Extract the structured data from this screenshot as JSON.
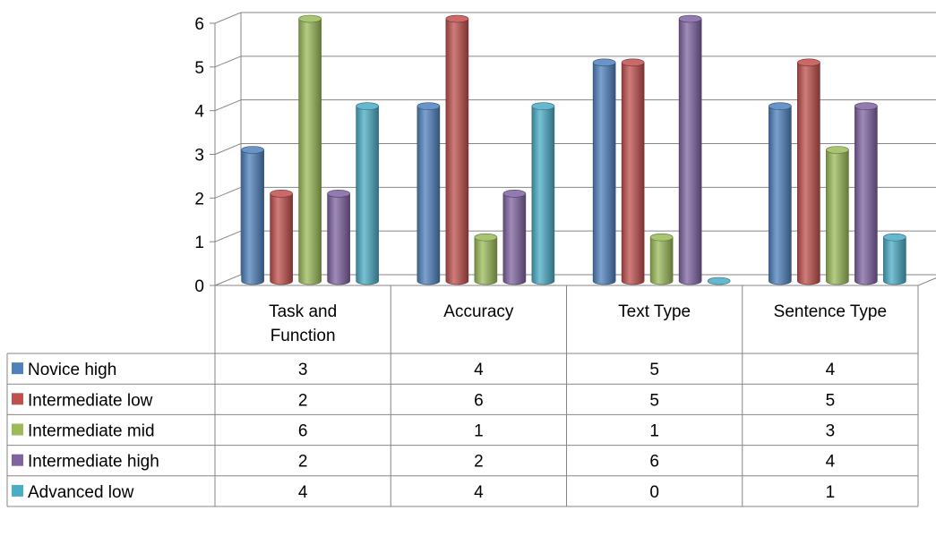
{
  "chart_data": {
    "type": "bar",
    "style": "3d-clustered-column-with-data-table",
    "categories": [
      "Task and Function",
      "Accuracy",
      "Text Type",
      "Sentence Type"
    ],
    "category_label_lines": [
      [
        "Task and",
        "Function"
      ],
      [
        "Accuracy"
      ],
      [
        "Text Type"
      ],
      [
        "Sentence Type"
      ]
    ],
    "series": [
      {
        "name": "Novice high",
        "values": [
          3,
          4,
          5,
          4
        ],
        "color": "#4F81BD"
      },
      {
        "name": "Intermediate low",
        "values": [
          2,
          6,
          5,
          5
        ],
        "color": "#C0504D"
      },
      {
        "name": "Intermediate mid",
        "values": [
          6,
          1,
          1,
          3
        ],
        "color": "#9BBB59"
      },
      {
        "name": "Intermediate high",
        "values": [
          2,
          2,
          6,
          4
        ],
        "color": "#8064A2"
      },
      {
        "name": "Advanced low",
        "values": [
          4,
          4,
          0,
          1
        ],
        "color": "#4BACC6"
      }
    ],
    "ylim": [
      0,
      6
    ],
    "yticks": [
      0,
      1,
      2,
      3,
      4,
      5,
      6
    ],
    "grid": true,
    "legend": "data-table-left",
    "title": "",
    "xlabel": "",
    "ylabel": ""
  }
}
